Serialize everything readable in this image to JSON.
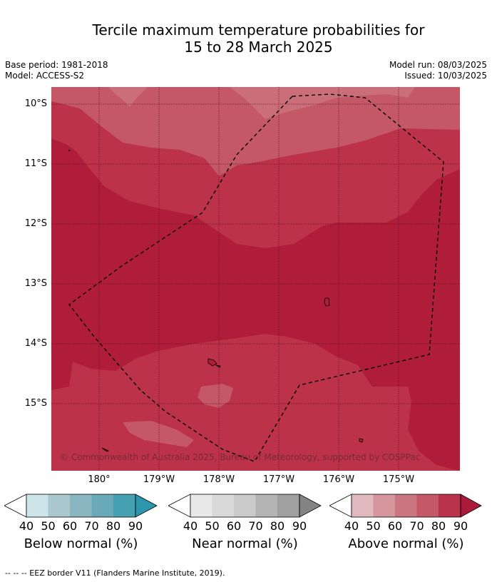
{
  "title_line1": "Tercile maximum temperature probabilities for",
  "title_line2": "15 to 28 March 2025",
  "base_period": "Base period: 1981-2018",
  "model": "Model: ACCESS-S2",
  "model_run": "Model run: 08/03/2025",
  "issued": "Issued: 10/03/2025",
  "lat_labels": [
    "10°S",
    "11°S",
    "12°S",
    "13°S",
    "14°S",
    "15°S"
  ],
  "lon_labels": [
    "180°",
    "179°W",
    "178°W",
    "177°W",
    "176°W",
    "175°W"
  ],
  "copyright": "© Commonwealth of Australia 2025, Bureau of Meteorology, supported by COSPPac",
  "colorbars": [
    {
      "label": "Below normal (%)",
      "ticks": [
        "40",
        "50",
        "60",
        "70",
        "80",
        "90"
      ],
      "colors": [
        "#cde4ea",
        "#a9c9cf",
        "#89b6c1",
        "#6aa9b8",
        "#45a1b1",
        "#2d95ac"
      ]
    },
    {
      "label": "Near normal (%)",
      "ticks": [
        "40",
        "50",
        "60",
        "70",
        "80",
        "90"
      ],
      "colors": [
        "#e8e8e8",
        "#d9d9d9",
        "#cacaca",
        "#b4b4b4",
        "#a0a0a0",
        "#848484"
      ]
    },
    {
      "label": "Above normal (%)",
      "ticks": [
        "40",
        "50",
        "60",
        "70",
        "80",
        "90"
      ],
      "colors": [
        "#e2b9bf",
        "#d6969d",
        "#ca7580",
        "#c45866",
        "#b8334b",
        "#ab1a3b"
      ]
    }
  ],
  "footer": "-- -- -- EEZ border V11 (Flanders Marine Institute, 2019).",
  "colors": {
    "above_60": "#ca6e79",
    "above_70": "#c45866",
    "above_80": "#bb3249",
    "above_90": "#b01d3b"
  }
}
